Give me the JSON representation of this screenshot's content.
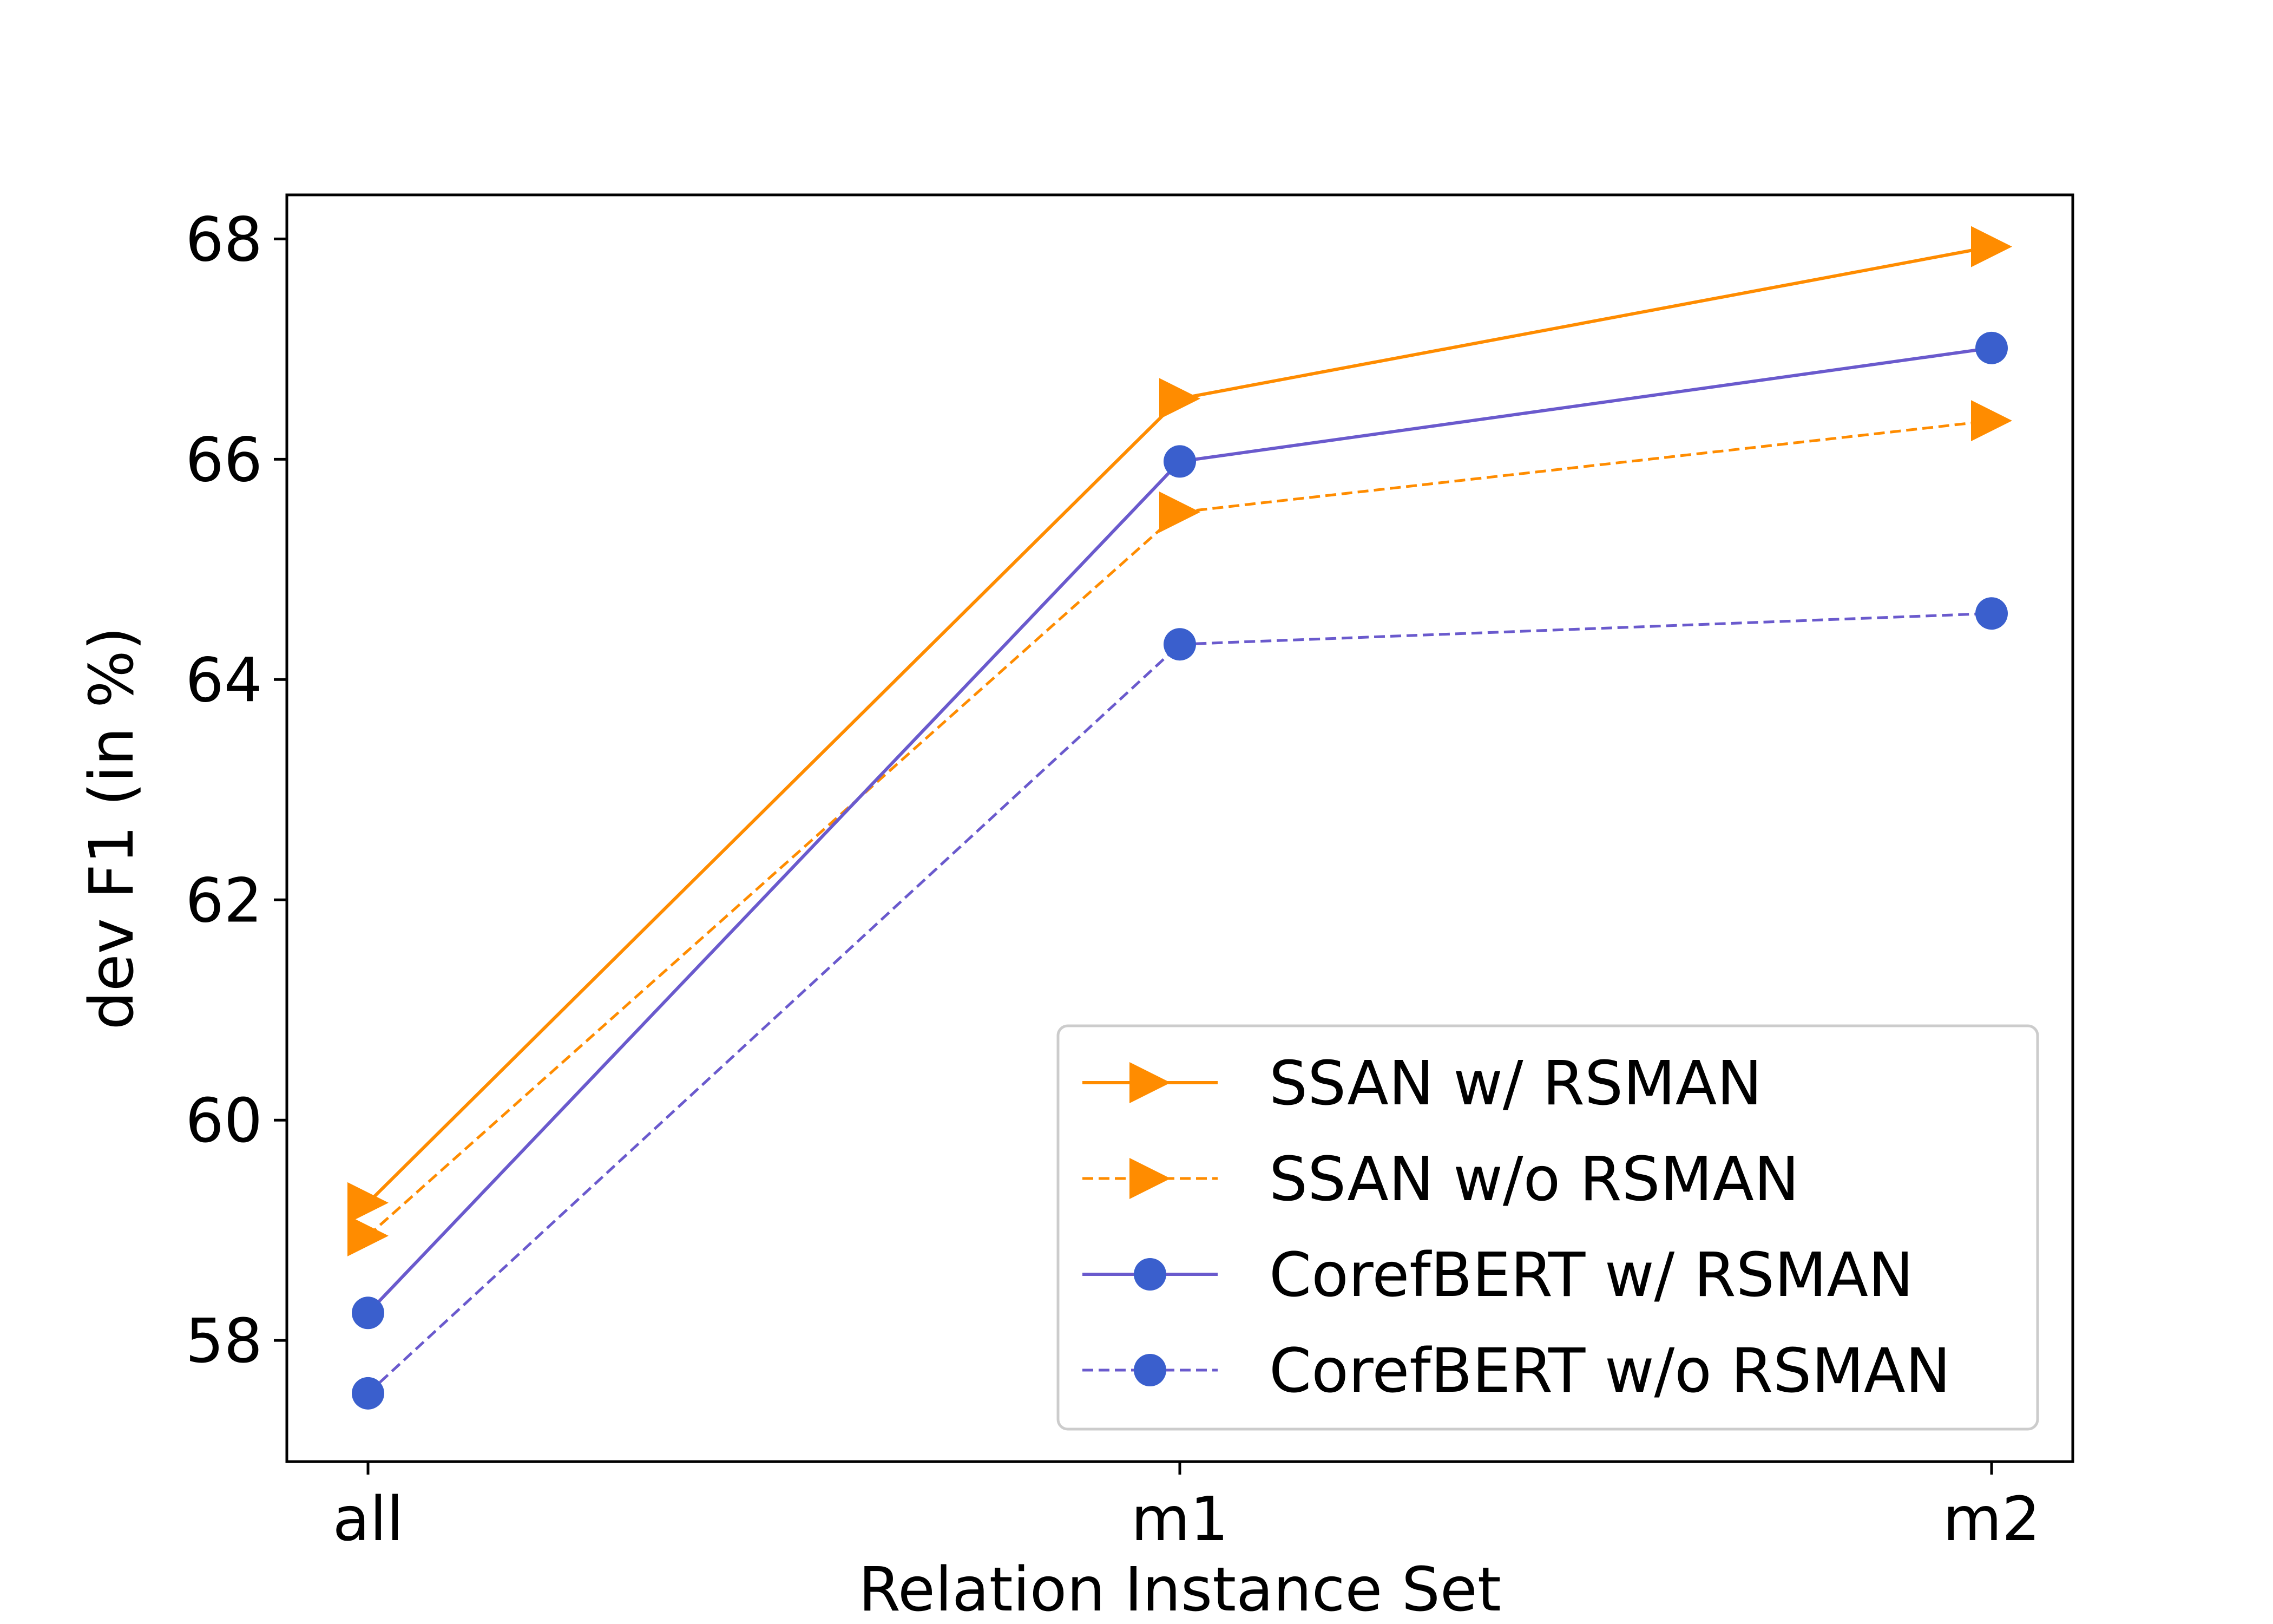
{
  "chart_data": {
    "type": "line",
    "categories": [
      "all",
      "m1",
      "m2"
    ],
    "xlabel": "Relation Instance Set",
    "ylabel": "dev F1 (in %)",
    "ylim": [
      56.9,
      68.4
    ],
    "yticks": [
      58,
      60,
      62,
      64,
      66,
      68
    ],
    "grid": false,
    "legend_position": "lower-right",
    "series": [
      {
        "name": "SSAN w/ RSMAN",
        "values": [
          59.25,
          66.55,
          67.93
        ],
        "color": "#ff8c00",
        "line_color": "#ff8c00",
        "dash": "solid",
        "marker": "triangle-right"
      },
      {
        "name": "SSAN w/o RSMAN",
        "values": [
          58.95,
          65.52,
          66.35
        ],
        "color": "#ff8c00",
        "line_color": "#ff8c00",
        "dash": "dashed",
        "marker": "triangle-right"
      },
      {
        "name": "CorefBERT w/ RSMAN",
        "values": [
          58.25,
          65.98,
          67.01
        ],
        "color": "#3a5fcd",
        "line_color": "#6a5acd",
        "dash": "solid",
        "marker": "circle"
      },
      {
        "name": "CorefBERT w/o RSMAN",
        "values": [
          57.52,
          64.32,
          64.6
        ],
        "color": "#3a5fcd",
        "line_color": "#6a5acd",
        "dash": "dashed",
        "marker": "circle"
      }
    ]
  }
}
